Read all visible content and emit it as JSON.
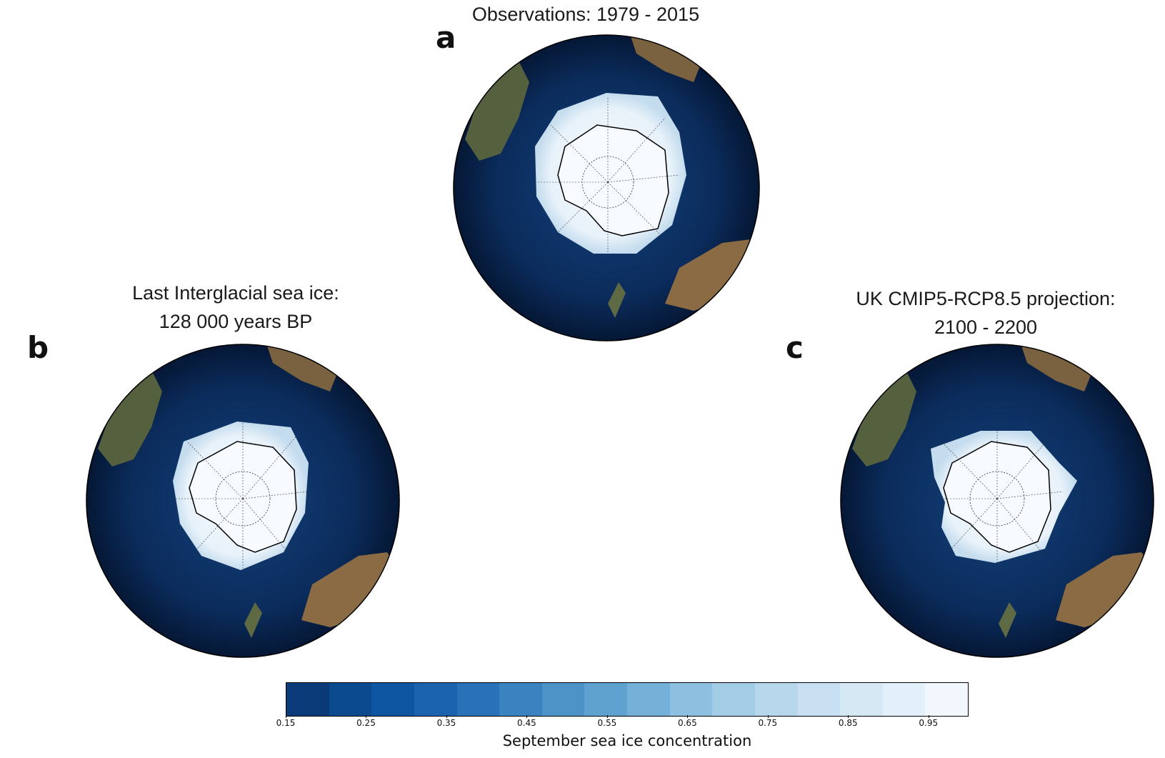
{
  "panels": {
    "a": {
      "letter": "a",
      "title_lines": [
        "Observations: 1979 - 2015"
      ]
    },
    "b": {
      "letter": "b",
      "title_lines": [
        "Last Interglacial sea ice:",
        "128 000 years BP"
      ]
    },
    "c": {
      "letter": "c",
      "title_lines": [
        "UK CMIP5-RCP8.5 projection:",
        "2100 - 2200"
      ]
    }
  },
  "colorbar": {
    "label": "September sea ice concentration",
    "ticks": [
      "0.15",
      "0.25",
      "0.35",
      "0.45",
      "0.55",
      "0.65",
      "0.75",
      "0.85",
      "0.95"
    ],
    "tick_values": [
      0.15,
      0.25,
      0.35,
      0.45,
      0.55,
      0.65,
      0.75,
      0.85,
      0.95
    ],
    "range": [
      0.15,
      1.0
    ],
    "colors": [
      "#0b3a78",
      "#0c4a8f",
      "#0f56a2",
      "#1b63ae",
      "#2a72b8",
      "#3a83c0",
      "#4d93c8",
      "#5fa2d0",
      "#74b0d8",
      "#8dc0e0",
      "#a3cde6",
      "#b6d7ec",
      "#c8e0f1",
      "#d7e8f5",
      "#e4f0f9",
      "#f1f7fd"
    ]
  },
  "map_colors": {
    "ocean_deep": "#06193a",
    "ocean": "#0c2f62",
    "land": "#6b5a3a",
    "ice": "#f3f8fd"
  }
}
